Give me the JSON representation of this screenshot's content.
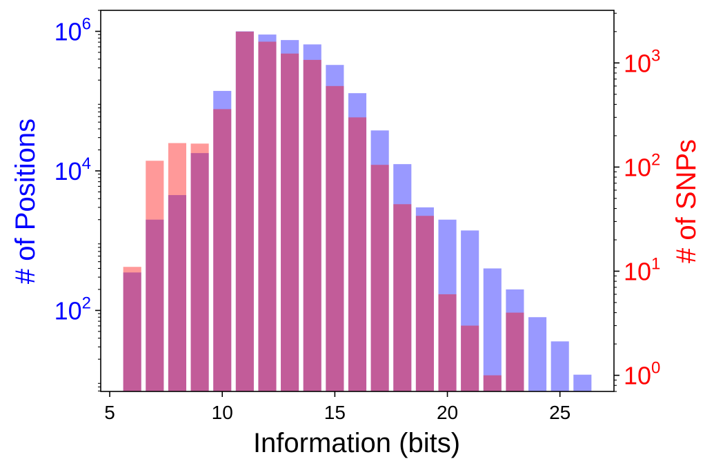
{
  "chart_data": {
    "type": "bar",
    "xlabel": "Information (bits)",
    "ylabel_left": "# of Positions",
    "ylabel_right": "# of SNPs",
    "xlim": [
      4.6,
      27.4
    ],
    "x_ticks": [
      {
        "value": 5,
        "label": "5"
      },
      {
        "value": 10,
        "label": "10"
      },
      {
        "value": 15,
        "label": "15"
      },
      {
        "value": 20,
        "label": "20"
      },
      {
        "value": 25,
        "label": "25"
      }
    ],
    "left_axis": {
      "scale": "log",
      "ylim": [
        6.9,
        2000000
      ],
      "color": "#0000ff",
      "ticks": [
        {
          "value": 100,
          "base": "10",
          "exp": "2"
        },
        {
          "value": 10000,
          "base": "10",
          "exp": "4"
        },
        {
          "value": 1000000,
          "base": "10",
          "exp": "6"
        }
      ]
    },
    "right_axis": {
      "scale": "log",
      "ylim": [
        0.7,
        3200
      ],
      "color": "#ff0000",
      "ticks": [
        {
          "value": 1,
          "base": "10",
          "exp": "0"
        },
        {
          "value": 10,
          "base": "10",
          "exp": "1"
        },
        {
          "value": 100,
          "base": "10",
          "exp": "2"
        },
        {
          "value": 1000,
          "base": "10",
          "exp": "3"
        }
      ]
    },
    "bar_width": 0.8,
    "series": [
      {
        "axis": "left",
        "color": "#0000ff",
        "opacity": 0.4,
        "x": [
          6,
          7,
          8,
          9,
          10,
          11,
          12,
          13,
          14,
          15,
          16,
          17,
          18,
          19,
          20,
          21,
          22,
          23,
          24,
          25,
          26
        ],
        "values": [
          350,
          2000,
          4500,
          18000,
          140000,
          1000000,
          900000,
          750000,
          650000,
          330000,
          130000,
          38000,
          12500,
          3000,
          2000,
          1400,
          400,
          200,
          80,
          36,
          12
        ]
      },
      {
        "axis": "right",
        "color": "#ff0000",
        "opacity": 0.4,
        "x": [
          6,
          7,
          8,
          9,
          10,
          11,
          12,
          13,
          14,
          15,
          16,
          17,
          18,
          19,
          20,
          21,
          22,
          23
        ],
        "values": [
          11,
          115,
          170,
          168,
          360,
          2000,
          1600,
          1230,
          1070,
          600,
          300,
          105,
          44,
          34,
          6,
          3,
          1,
          4
        ]
      }
    ]
  }
}
